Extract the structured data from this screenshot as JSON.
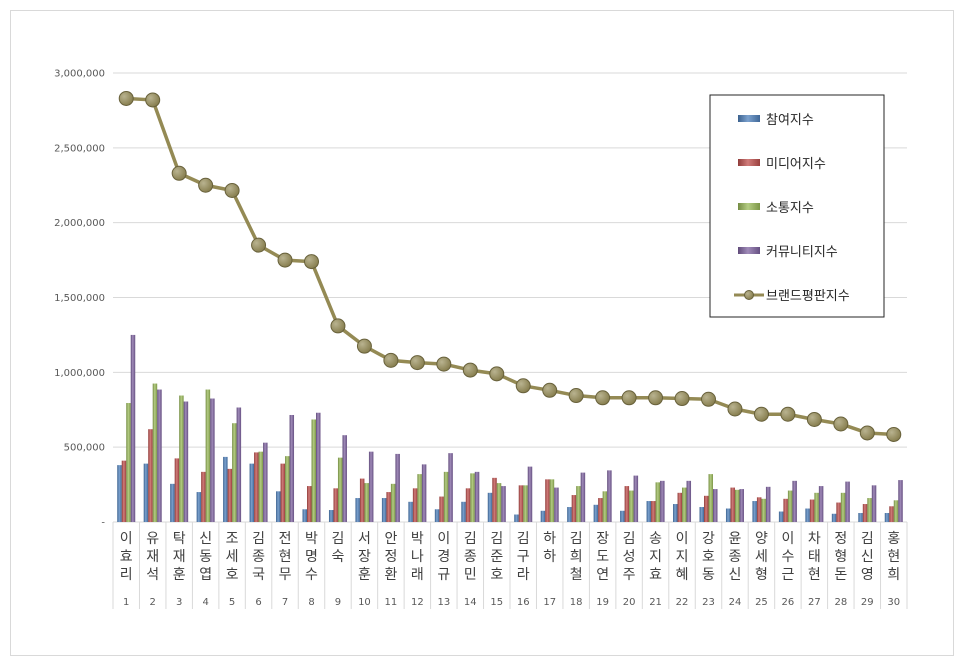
{
  "chart_data": {
    "type": "bar",
    "title": "",
    "xlabel": "",
    "ylabel": "",
    "ylim": [
      0,
      3000000
    ],
    "yticks": [
      {
        "value": 0,
        "label": "-"
      },
      {
        "value": 500000,
        "label": "500,000"
      },
      {
        "value": 1000000,
        "label": "1,000,000"
      },
      {
        "value": 1500000,
        "label": "1,500,000"
      },
      {
        "value": 2000000,
        "label": "2,000,000"
      },
      {
        "value": 2500000,
        "label": "2,500,000"
      },
      {
        "value": 3000000,
        "label": "3,000,000"
      }
    ],
    "grid": true,
    "legend_position": "top-right",
    "categories": [
      "이효리",
      "유재석",
      "탁재훈",
      "신동엽",
      "조세호",
      "김종국",
      "전현무",
      "박명수",
      "김숙",
      "서장훈",
      "안정환",
      "박나래",
      "이경규",
      "김종민",
      "김준호",
      "김구라",
      "하하",
      "김희철",
      "장도연",
      "김성주",
      "송지효",
      "이지혜",
      "강호동",
      "윤종신",
      "양세형",
      "이수근",
      "차태현",
      "정형돈",
      "김신영",
      "홍현희"
    ],
    "ranks": [
      "1",
      "2",
      "3",
      "4",
      "5",
      "6",
      "7",
      "8",
      "9",
      "10",
      "11",
      "12",
      "13",
      "14",
      "15",
      "16",
      "17",
      "18",
      "19",
      "20",
      "21",
      "22",
      "23",
      "24",
      "25",
      "26",
      "27",
      "28",
      "29",
      "30"
    ],
    "series": [
      {
        "name": "참여지수",
        "type": "bar",
        "color": "#4f81bd",
        "values": [
          380000,
          390000,
          255000,
          200000,
          435000,
          390000,
          205000,
          85000,
          80000,
          160000,
          160000,
          135000,
          85000,
          135000,
          195000,
          50000,
          75000,
          100000,
          115000,
          75000,
          140000,
          120000,
          100000,
          90000,
          140000,
          70000,
          90000,
          55000,
          60000,
          60000
        ]
      },
      {
        "name": "미디어지수",
        "type": "bar",
        "color": "#c0504d",
        "values": [
          410000,
          620000,
          425000,
          335000,
          355000,
          465000,
          390000,
          240000,
          225000,
          290000,
          200000,
          225000,
          170000,
          225000,
          295000,
          245000,
          285000,
          180000,
          160000,
          240000,
          140000,
          195000,
          175000,
          230000,
          165000,
          155000,
          150000,
          130000,
          120000,
          105000
        ]
      },
      {
        "name": "소통지수",
        "type": "bar",
        "color": "#9bbb59",
        "values": [
          795000,
          925000,
          845000,
          885000,
          660000,
          470000,
          440000,
          685000,
          430000,
          260000,
          255000,
          320000,
          335000,
          325000,
          260000,
          245000,
          285000,
          240000,
          205000,
          210000,
          265000,
          230000,
          320000,
          215000,
          155000,
          210000,
          195000,
          195000,
          160000,
          145000
        ]
      },
      {
        "name": "커뮤니티지수",
        "type": "bar",
        "color": "#8064a2",
        "values": [
          1250000,
          885000,
          805000,
          825000,
          765000,
          530000,
          715000,
          730000,
          580000,
          470000,
          455000,
          385000,
          460000,
          335000,
          240000,
          370000,
          230000,
          330000,
          345000,
          310000,
          275000,
          275000,
          220000,
          220000,
          235000,
          275000,
          240000,
          270000,
          245000,
          280000
        ]
      },
      {
        "name": "브랜드평판지수",
        "type": "line",
        "color": "#948a54",
        "values": [
          2830000,
          2820000,
          2330000,
          2250000,
          2215000,
          1850000,
          1750000,
          1740000,
          1310000,
          1175000,
          1080000,
          1065000,
          1055000,
          1015000,
          990000,
          910000,
          880000,
          845000,
          830000,
          830000,
          830000,
          825000,
          820000,
          755000,
          720000,
          720000,
          685000,
          655000,
          595000,
          585000
        ]
      }
    ]
  }
}
